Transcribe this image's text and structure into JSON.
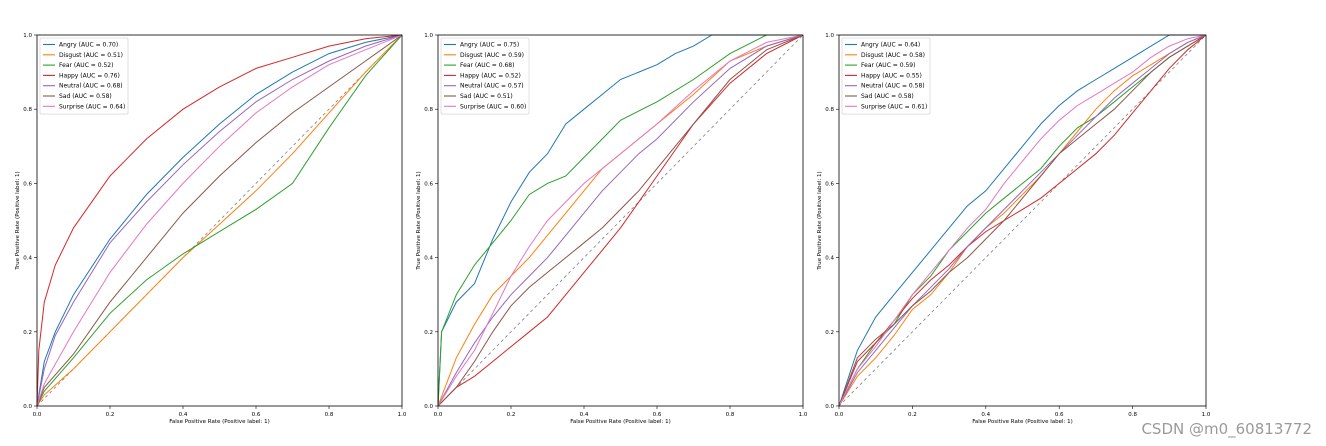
{
  "colors": {
    "angry": "#1f77b4",
    "disgust": "#ff7f0e",
    "fear": "#2ca02c",
    "happy": "#d62728",
    "neutral": "#9467bd",
    "sad": "#8c564b",
    "surprise": "#e377c2",
    "chance": "#7f7f7f"
  },
  "watermark": "CSDN @m0_60813772",
  "chart_data": [
    {
      "type": "line",
      "xlabel": "False Positive Rate (Positive label: 1)",
      "ylabel": "True Positive Rate (Positive label: 1)",
      "xlim": [
        0,
        1
      ],
      "ylim": [
        0,
        1
      ],
      "xticks": [
        "0.0",
        "0.2",
        "0.4",
        "0.6",
        "0.8",
        "1.0"
      ],
      "yticks": [
        "0.0",
        "0.2",
        "0.4",
        "0.6",
        "0.8",
        "1.0"
      ],
      "legend_position": "top-left",
      "series": [
        {
          "name": "Angry (AUC = 0.70)",
          "color_key": "angry",
          "x": [
            0,
            0.02,
            0.05,
            0.1,
            0.2,
            0.3,
            0.4,
            0.5,
            0.6,
            0.7,
            0.8,
            0.9,
            1.0
          ],
          "y": [
            0,
            0.12,
            0.2,
            0.3,
            0.45,
            0.57,
            0.67,
            0.76,
            0.84,
            0.9,
            0.95,
            0.98,
            1.0
          ]
        },
        {
          "name": "Disgust (AUC = 0.51)",
          "color_key": "disgust",
          "x": [
            0,
            0.02,
            0.1,
            0.2,
            0.3,
            0.4,
            0.5,
            0.6,
            0.7,
            0.8,
            0.9,
            1.0
          ],
          "y": [
            0,
            0.03,
            0.1,
            0.2,
            0.3,
            0.4,
            0.49,
            0.58,
            0.68,
            0.79,
            0.9,
            1.0
          ]
        },
        {
          "name": "Fear (AUC = 0.52)",
          "color_key": "fear",
          "x": [
            0,
            0.02,
            0.1,
            0.2,
            0.3,
            0.4,
            0.5,
            0.6,
            0.7,
            0.8,
            0.9,
            1.0
          ],
          "y": [
            0,
            0.04,
            0.13,
            0.25,
            0.34,
            0.41,
            0.47,
            0.53,
            0.6,
            0.75,
            0.89,
            1.0
          ]
        },
        {
          "name": "Happy (AUC = 0.76)",
          "color_key": "happy",
          "x": [
            0,
            0.005,
            0.02,
            0.05,
            0.1,
            0.2,
            0.3,
            0.4,
            0.5,
            0.6,
            0.7,
            0.8,
            0.9,
            1.0
          ],
          "y": [
            0,
            0.15,
            0.28,
            0.38,
            0.48,
            0.62,
            0.72,
            0.8,
            0.86,
            0.91,
            0.94,
            0.97,
            0.99,
            1.0
          ]
        },
        {
          "name": "Neutral (AUC = 0.68)",
          "color_key": "neutral",
          "x": [
            0,
            0.02,
            0.05,
            0.1,
            0.2,
            0.3,
            0.4,
            0.5,
            0.6,
            0.7,
            0.8,
            0.9,
            1.0
          ],
          "y": [
            0,
            0.1,
            0.19,
            0.28,
            0.44,
            0.55,
            0.65,
            0.74,
            0.82,
            0.88,
            0.93,
            0.97,
            1.0
          ]
        },
        {
          "name": "Sad (AUC = 0.58)",
          "color_key": "sad",
          "x": [
            0,
            0.02,
            0.1,
            0.2,
            0.3,
            0.4,
            0.5,
            0.6,
            0.7,
            0.8,
            0.9,
            1.0
          ],
          "y": [
            0,
            0.05,
            0.14,
            0.28,
            0.4,
            0.52,
            0.62,
            0.71,
            0.79,
            0.86,
            0.93,
            1.0
          ]
        },
        {
          "name": "Surprise (AUC = 0.64)",
          "color_key": "surprise",
          "x": [
            0,
            0.02,
            0.1,
            0.2,
            0.3,
            0.4,
            0.5,
            0.6,
            0.7,
            0.8,
            0.9,
            1.0
          ],
          "y": [
            0,
            0.06,
            0.2,
            0.36,
            0.49,
            0.6,
            0.7,
            0.79,
            0.86,
            0.92,
            0.96,
            1.0
          ]
        }
      ]
    },
    {
      "type": "line",
      "xlabel": "False Positive Rate (Positive label: 1)",
      "ylabel": "True Positive Rate (Positive label: 1)",
      "xlim": [
        0,
        1
      ],
      "ylim": [
        0,
        1
      ],
      "xticks": [
        "0.0",
        "0.2",
        "0.4",
        "0.6",
        "0.8",
        "1.0"
      ],
      "yticks": [
        "0.0",
        "0.2",
        "0.4",
        "0.6",
        "0.8",
        "1.0"
      ],
      "legend_position": "top-left",
      "series": [
        {
          "name": "Angry (AUC = 0.75)",
          "color_key": "angry",
          "x": [
            0,
            0.01,
            0.05,
            0.1,
            0.15,
            0.2,
            0.25,
            0.3,
            0.35,
            0.4,
            0.45,
            0.5,
            0.55,
            0.6,
            0.65,
            0.7,
            0.75,
            0.8,
            0.9,
            1.0
          ],
          "y": [
            0,
            0.2,
            0.28,
            0.33,
            0.45,
            0.55,
            0.63,
            0.68,
            0.76,
            0.8,
            0.84,
            0.88,
            0.9,
            0.92,
            0.95,
            0.97,
            1.0,
            1.0,
            1.0,
            1.0
          ]
        },
        {
          "name": "Disgust (AUC = 0.59)",
          "color_key": "disgust",
          "x": [
            0,
            0.05,
            0.1,
            0.15,
            0.2,
            0.25,
            0.3,
            0.35,
            0.4,
            0.45,
            0.5,
            0.55,
            0.6,
            0.7,
            0.8,
            0.9,
            1.0
          ],
          "y": [
            0,
            0.13,
            0.22,
            0.3,
            0.35,
            0.4,
            0.46,
            0.52,
            0.58,
            0.64,
            0.68,
            0.72,
            0.76,
            0.84,
            0.93,
            0.97,
            1.0
          ]
        },
        {
          "name": "Fear (AUC = 0.68)",
          "color_key": "fear",
          "x": [
            0,
            0.01,
            0.05,
            0.1,
            0.15,
            0.2,
            0.25,
            0.3,
            0.35,
            0.4,
            0.45,
            0.5,
            0.6,
            0.7,
            0.8,
            0.9,
            1.0
          ],
          "y": [
            0,
            0.2,
            0.3,
            0.38,
            0.44,
            0.5,
            0.57,
            0.6,
            0.62,
            0.67,
            0.72,
            0.77,
            0.82,
            0.88,
            0.95,
            1.0,
            1.0
          ]
        },
        {
          "name": "Happy (AUC = 0.52)",
          "color_key": "happy",
          "x": [
            0,
            0.05,
            0.1,
            0.15,
            0.2,
            0.25,
            0.3,
            0.35,
            0.4,
            0.45,
            0.5,
            0.55,
            0.6,
            0.7,
            0.8,
            0.9,
            1.0
          ],
          "y": [
            0,
            0.05,
            0.08,
            0.12,
            0.16,
            0.2,
            0.24,
            0.3,
            0.36,
            0.42,
            0.48,
            0.55,
            0.62,
            0.76,
            0.87,
            0.95,
            1.0
          ]
        },
        {
          "name": "Neutral (AUC = 0.57)",
          "color_key": "neutral",
          "x": [
            0,
            0.05,
            0.1,
            0.15,
            0.2,
            0.25,
            0.3,
            0.35,
            0.4,
            0.45,
            0.5,
            0.55,
            0.6,
            0.7,
            0.8,
            0.9,
            1.0
          ],
          "y": [
            0,
            0.09,
            0.17,
            0.24,
            0.3,
            0.35,
            0.4,
            0.46,
            0.52,
            0.58,
            0.63,
            0.68,
            0.72,
            0.82,
            0.91,
            0.97,
            1.0
          ]
        },
        {
          "name": "Sad (AUC = 0.51)",
          "color_key": "sad",
          "x": [
            0,
            0.05,
            0.1,
            0.15,
            0.2,
            0.25,
            0.3,
            0.35,
            0.4,
            0.45,
            0.5,
            0.55,
            0.6,
            0.7,
            0.8,
            0.9,
            1.0
          ],
          "y": [
            0,
            0.05,
            0.12,
            0.2,
            0.27,
            0.32,
            0.36,
            0.4,
            0.44,
            0.48,
            0.53,
            0.58,
            0.64,
            0.76,
            0.88,
            0.96,
            1.0
          ]
        },
        {
          "name": "Surprise (AUC = 0.60)",
          "color_key": "surprise",
          "x": [
            0,
            0.05,
            0.1,
            0.15,
            0.2,
            0.25,
            0.3,
            0.35,
            0.4,
            0.45,
            0.5,
            0.55,
            0.6,
            0.7,
            0.8,
            0.9,
            1.0
          ],
          "y": [
            0,
            0.08,
            0.15,
            0.25,
            0.35,
            0.43,
            0.5,
            0.55,
            0.6,
            0.64,
            0.68,
            0.72,
            0.76,
            0.85,
            0.93,
            0.98,
            1.0
          ]
        }
      ]
    },
    {
      "type": "line",
      "xlabel": "False Positive Rate (Positive label: 1)",
      "ylabel": "True Positive Rate (Positive label: 1)",
      "xlim": [
        0,
        1
      ],
      "ylim": [
        0,
        1
      ],
      "xticks": [
        "0.0",
        "0.2",
        "0.4",
        "0.6",
        "0.8",
        "1.0"
      ],
      "yticks": [
        "0.0",
        "0.2",
        "0.4",
        "0.6",
        "0.8",
        "1.0"
      ],
      "legend_position": "top-left",
      "series": [
        {
          "name": "Angry (AUC = 0.64)",
          "color_key": "angry",
          "x": [
            0,
            0.05,
            0.1,
            0.15,
            0.2,
            0.25,
            0.3,
            0.35,
            0.4,
            0.45,
            0.5,
            0.55,
            0.6,
            0.65,
            0.7,
            0.75,
            0.8,
            0.85,
            0.9,
            0.95,
            1.0
          ],
          "y": [
            0,
            0.15,
            0.24,
            0.3,
            0.36,
            0.42,
            0.48,
            0.54,
            0.58,
            0.64,
            0.7,
            0.76,
            0.81,
            0.85,
            0.88,
            0.91,
            0.94,
            0.97,
            1.0,
            1.0,
            1.0
          ]
        },
        {
          "name": "Disgust (AUC = 0.58)",
          "color_key": "disgust",
          "x": [
            0,
            0.05,
            0.1,
            0.15,
            0.2,
            0.25,
            0.3,
            0.35,
            0.4,
            0.45,
            0.5,
            0.55,
            0.6,
            0.65,
            0.7,
            0.75,
            0.8,
            0.85,
            0.9,
            0.95,
            1.0
          ],
          "y": [
            0,
            0.08,
            0.13,
            0.19,
            0.26,
            0.3,
            0.36,
            0.43,
            0.48,
            0.52,
            0.57,
            0.62,
            0.68,
            0.74,
            0.8,
            0.85,
            0.89,
            0.92,
            0.95,
            0.98,
            1.0
          ]
        },
        {
          "name": "Fear (AUC = 0.59)",
          "color_key": "fear",
          "x": [
            0,
            0.05,
            0.1,
            0.15,
            0.2,
            0.25,
            0.3,
            0.35,
            0.4,
            0.45,
            0.5,
            0.55,
            0.6,
            0.65,
            0.7,
            0.75,
            0.8,
            0.85,
            0.9,
            0.95,
            1.0
          ],
          "y": [
            0,
            0.1,
            0.17,
            0.22,
            0.3,
            0.35,
            0.42,
            0.47,
            0.52,
            0.56,
            0.6,
            0.64,
            0.7,
            0.75,
            0.78,
            0.82,
            0.86,
            0.9,
            0.94,
            0.97,
            1.0
          ]
        },
        {
          "name": "Happy (AUC = 0.55)",
          "color_key": "happy",
          "x": [
            0,
            0.05,
            0.1,
            0.15,
            0.2,
            0.25,
            0.3,
            0.35,
            0.4,
            0.45,
            0.5,
            0.55,
            0.6,
            0.65,
            0.7,
            0.75,
            0.8,
            0.85,
            0.9,
            0.95,
            1.0
          ],
          "y": [
            0,
            0.12,
            0.17,
            0.23,
            0.29,
            0.34,
            0.38,
            0.43,
            0.47,
            0.5,
            0.53,
            0.56,
            0.6,
            0.64,
            0.68,
            0.73,
            0.79,
            0.85,
            0.91,
            0.96,
            1.0
          ]
        },
        {
          "name": "Neutral (AUC = 0.58)",
          "color_key": "neutral",
          "x": [
            0,
            0.05,
            0.1,
            0.15,
            0.2,
            0.25,
            0.3,
            0.35,
            0.4,
            0.45,
            0.5,
            0.55,
            0.6,
            0.65,
            0.7,
            0.75,
            0.8,
            0.85,
            0.9,
            0.95,
            1.0
          ],
          "y": [
            0,
            0.09,
            0.15,
            0.21,
            0.27,
            0.32,
            0.37,
            0.43,
            0.48,
            0.53,
            0.58,
            0.63,
            0.68,
            0.73,
            0.78,
            0.83,
            0.87,
            0.91,
            0.95,
            0.98,
            1.0
          ]
        },
        {
          "name": "Sad (AUC = 0.58)",
          "color_key": "sad",
          "x": [
            0,
            0.05,
            0.1,
            0.15,
            0.2,
            0.25,
            0.3,
            0.35,
            0.4,
            0.45,
            0.5,
            0.55,
            0.6,
            0.65,
            0.7,
            0.75,
            0.8,
            0.85,
            0.9,
            0.95,
            1.0
          ],
          "y": [
            0,
            0.13,
            0.18,
            0.22,
            0.27,
            0.31,
            0.36,
            0.4,
            0.45,
            0.5,
            0.56,
            0.62,
            0.68,
            0.72,
            0.76,
            0.8,
            0.85,
            0.9,
            0.94,
            0.97,
            1.0
          ]
        },
        {
          "name": "Surprise (AUC = 0.61)",
          "color_key": "surprise",
          "x": [
            0,
            0.05,
            0.1,
            0.15,
            0.2,
            0.25,
            0.3,
            0.35,
            0.4,
            0.45,
            0.5,
            0.55,
            0.6,
            0.65,
            0.7,
            0.75,
            0.8,
            0.85,
            0.9,
            0.95,
            1.0
          ],
          "y": [
            0,
            0.1,
            0.16,
            0.23,
            0.3,
            0.36,
            0.42,
            0.48,
            0.53,
            0.6,
            0.66,
            0.72,
            0.77,
            0.81,
            0.84,
            0.87,
            0.9,
            0.94,
            0.97,
            0.99,
            1.0
          ]
        }
      ]
    }
  ]
}
